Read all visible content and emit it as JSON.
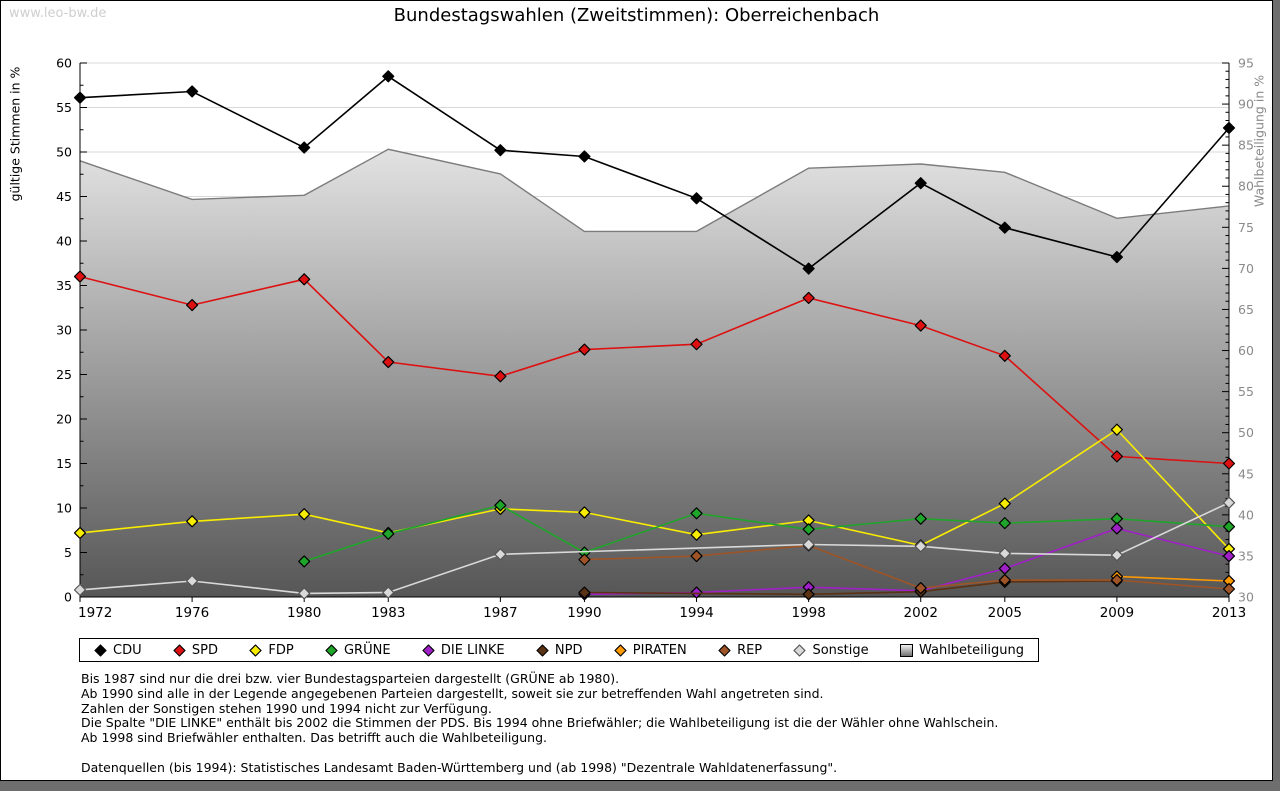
{
  "page": {
    "watermark": "www.leo-bw.de",
    "title": "Bundestagswahlen (Zweitstimmen): Oberreichenbach"
  },
  "chart_data": {
    "type": "line",
    "title": "Bundestagswahlen (Zweitstimmen): Oberreichenbach",
    "x": [
      1972,
      1976,
      1980,
      1983,
      1987,
      1990,
      1994,
      1998,
      2002,
      2005,
      2009,
      2013
    ],
    "left_axis": {
      "label": "gültige Stimmen in %",
      "min": 0,
      "max": 60,
      "tick_step": 5
    },
    "right_axis": {
      "label": "Wahlbeteiligung in %",
      "min": 30,
      "max": 95,
      "tick_step": 5
    },
    "grid": true,
    "legend_position": "bottom",
    "series": [
      {
        "name": "CDU",
        "color": "#000000",
        "axis": "left",
        "kind": "line",
        "values": [
          56.1,
          56.8,
          50.5,
          58.5,
          50.2,
          49.5,
          44.8,
          36.9,
          46.5,
          41.5,
          38.2,
          52.7
        ]
      },
      {
        "name": "SPD",
        "color": "#dd1111",
        "axis": "left",
        "kind": "line",
        "values": [
          36.0,
          32.8,
          35.7,
          26.4,
          24.8,
          27.8,
          28.4,
          33.6,
          30.5,
          27.1,
          15.8,
          15.0
        ]
      },
      {
        "name": "FDP",
        "color": "#f8ec00",
        "axis": "left",
        "kind": "line",
        "values": [
          7.2,
          8.5,
          9.3,
          7.2,
          9.9,
          9.5,
          7.0,
          8.6,
          5.8,
          10.5,
          18.8,
          5.4
        ]
      },
      {
        "name": "GRÜNE",
        "color": "#1fa52a",
        "axis": "left",
        "kind": "line",
        "values": [
          null,
          null,
          4.0,
          7.1,
          10.3,
          5.0,
          9.4,
          7.6,
          8.8,
          8.3,
          8.8,
          7.9
        ]
      },
      {
        "name": "DIE LINKE",
        "color": "#a020c8",
        "axis": "left",
        "kind": "line",
        "values": [
          null,
          null,
          null,
          null,
          null,
          0.3,
          0.5,
          1.1,
          0.7,
          3.2,
          7.7,
          4.6
        ]
      },
      {
        "name": "NPD",
        "color": "#5a3214",
        "axis": "left",
        "kind": "line",
        "values": [
          null,
          null,
          null,
          null,
          null,
          0.5,
          null,
          0.3,
          0.6,
          1.7,
          1.8,
          null
        ]
      },
      {
        "name": "PIRATEN",
        "color": "#ff9900",
        "axis": "left",
        "kind": "line",
        "values": [
          null,
          null,
          null,
          null,
          null,
          null,
          null,
          null,
          null,
          null,
          2.3,
          1.8
        ]
      },
      {
        "name": "REP",
        "color": "#9e5426",
        "axis": "left",
        "kind": "line",
        "values": [
          null,
          null,
          null,
          null,
          null,
          4.2,
          4.6,
          5.8,
          1.0,
          1.9,
          1.9,
          0.9
        ]
      },
      {
        "name": "Sonstige",
        "color": "#d9d9d9",
        "axis": "left",
        "kind": "line",
        "values": [
          0.8,
          1.8,
          0.4,
          0.5,
          4.8,
          null,
          null,
          5.9,
          5.7,
          4.9,
          4.7,
          10.6
        ]
      },
      {
        "name": "Wahlbeteiligung",
        "color": "#7c7c7c",
        "axis": "right",
        "kind": "area",
        "values": [
          83.1,
          78.4,
          78.9,
          84.5,
          81.5,
          74.5,
          74.5,
          82.2,
          82.7,
          81.7,
          76.1,
          77.6
        ]
      }
    ]
  },
  "footnotes": [
    "Bis 1987 sind nur die drei bzw. vier Bundestagsparteien dargestellt (GRÜNE ab 1980).",
    "Ab 1990 sind alle in der Legende angegebenen Parteien dargestellt, soweit sie zur betreffenden Wahl angetreten sind.",
    "Zahlen der Sonstigen stehen 1990 und 1994 nicht zur Verfügung.",
    "Die Spalte \"DIE LINKE\" enthält bis 2002 die Stimmen der PDS. Bis 1994 ohne Briefwähler; die Wahlbeteiligung ist die der Wähler ohne Wahlschein.",
    "Ab 1998 sind Briefwähler enthalten. Das betrifft auch die Wahlbeteiligung.",
    "",
    "Datenquellen (bis 1994): Statistisches Landesamt Baden-Württemberg und (ab 1998) \"Dezentrale Wahldatenerfassung\"."
  ]
}
